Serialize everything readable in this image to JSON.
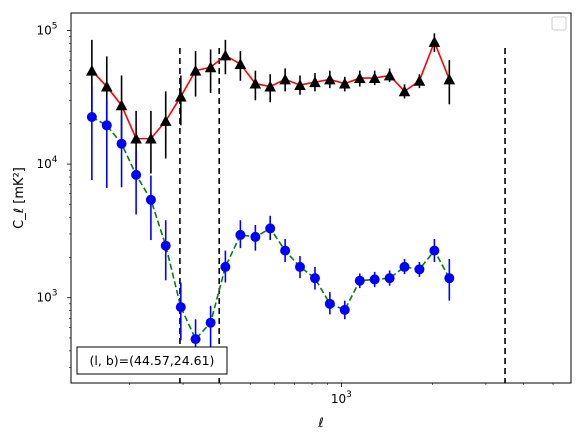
{
  "chart_data": {
    "type": "line",
    "xlabel": "ℓ",
    "ylabel": "C_ℓ [mK²]",
    "x_scale": "log",
    "y_scale": "log",
    "xlim": [
      128,
      5730
    ],
    "ylim": [
      230,
      135000
    ],
    "x_ticks": [
      {
        "value": 1000,
        "base": "10",
        "exp": "3"
      }
    ],
    "y_ticks": [
      {
        "value": 1000,
        "base": "10",
        "exp": "3"
      },
      {
        "value": 10000,
        "base": "10",
        "exp": "4"
      },
      {
        "value": 100000,
        "base": "10",
        "exp": "5"
      }
    ],
    "vlines": [
      293,
      395,
      3470
    ],
    "annotation": "(l, b)=(44.57,24.61)",
    "legend": {
      "position": "top-right",
      "entries": []
    },
    "series": [
      {
        "color": "#ff0000",
        "line_style": "solid",
        "marker": "triangle",
        "marker_color": "#000000",
        "errorbar_color": "#000000",
        "points": [
          {
            "x": 150,
            "y": 50000,
            "lo": 25000,
            "hi": 85000
          },
          {
            "x": 168,
            "y": 38000,
            "lo": 19000,
            "hi": 64000
          },
          {
            "x": 188,
            "y": 27500,
            "lo": 14500,
            "hi": 46000
          },
          {
            "x": 210,
            "y": 15500,
            "lo": 8500,
            "hi": 25000
          },
          {
            "x": 235,
            "y": 15500,
            "lo": 8500,
            "hi": 25000
          },
          {
            "x": 263,
            "y": 21000,
            "lo": 11000,
            "hi": 35000
          },
          {
            "x": 295,
            "y": 32000,
            "lo": 19500,
            "hi": 46000
          },
          {
            "x": 330,
            "y": 50000,
            "lo": 32000,
            "hi": 70000
          },
          {
            "x": 370,
            "y": 53000,
            "lo": 34000,
            "hi": 72000
          },
          {
            "x": 414,
            "y": 65000,
            "lo": 47000,
            "hi": 85000
          },
          {
            "x": 464,
            "y": 56000,
            "lo": 42000,
            "hi": 70000
          },
          {
            "x": 520,
            "y": 40000,
            "lo": 30000,
            "hi": 50000
          },
          {
            "x": 582,
            "y": 38000,
            "lo": 29000,
            "hi": 47000
          },
          {
            "x": 652,
            "y": 43000,
            "lo": 35000,
            "hi": 52000
          },
          {
            "x": 730,
            "y": 39000,
            "lo": 33000,
            "hi": 46000
          },
          {
            "x": 818,
            "y": 41000,
            "lo": 35000,
            "hi": 48000
          },
          {
            "x": 916,
            "y": 43000,
            "lo": 37000,
            "hi": 50000
          },
          {
            "x": 1026,
            "y": 40000,
            "lo": 35000,
            "hi": 45000
          },
          {
            "x": 1150,
            "y": 44000,
            "lo": 38000,
            "hi": 50000
          },
          {
            "x": 1288,
            "y": 44000,
            "lo": 39000,
            "hi": 50000
          },
          {
            "x": 1443,
            "y": 46000,
            "lo": 41000,
            "hi": 52000
          },
          {
            "x": 1616,
            "y": 35000,
            "lo": 31000,
            "hi": 39500
          },
          {
            "x": 1810,
            "y": 42000,
            "lo": 37000,
            "hi": 47000
          },
          {
            "x": 2028,
            "y": 82000,
            "lo": 69000,
            "hi": 95000
          },
          {
            "x": 2272,
            "y": 43000,
            "lo": 28000,
            "hi": 60000
          }
        ]
      },
      {
        "color": "#008000",
        "line_style": "dashed",
        "marker": "circle",
        "marker_color": "#0000ff",
        "errorbar_color": "#0000ff",
        "points": [
          {
            "x": 150,
            "y": 22500,
            "lo": 7600,
            "hi": 38000
          },
          {
            "x": 168,
            "y": 19500,
            "lo": 6600,
            "hi": 31000
          },
          {
            "x": 188,
            "y": 14200,
            "lo": 6700,
            "hi": 23000
          },
          {
            "x": 210,
            "y": 8300,
            "lo": 4200,
            "hi": 12500
          },
          {
            "x": 235,
            "y": 5400,
            "lo": 2700,
            "hi": 8200
          },
          {
            "x": 263,
            "y": 2450,
            "lo": 1350,
            "hi": 3800
          },
          {
            "x": 295,
            "y": 850,
            "lo": 480,
            "hi": 1300
          },
          {
            "x": 330,
            "y": 490,
            "lo": 330,
            "hi": 690
          },
          {
            "x": 370,
            "y": 650,
            "lo": 430,
            "hi": 870
          },
          {
            "x": 414,
            "y": 1700,
            "lo": 1300,
            "hi": 2250
          },
          {
            "x": 464,
            "y": 2950,
            "lo": 2350,
            "hi": 3800
          },
          {
            "x": 520,
            "y": 2850,
            "lo": 2250,
            "hi": 3500
          },
          {
            "x": 582,
            "y": 3300,
            "lo": 2700,
            "hi": 4100
          },
          {
            "x": 652,
            "y": 2250,
            "lo": 1850,
            "hi": 2750
          },
          {
            "x": 730,
            "y": 1700,
            "lo": 1400,
            "hi": 2050
          },
          {
            "x": 818,
            "y": 1400,
            "lo": 1150,
            "hi": 1700
          },
          {
            "x": 916,
            "y": 900,
            "lo": 750,
            "hi": 1100
          },
          {
            "x": 1026,
            "y": 810,
            "lo": 690,
            "hi": 950
          },
          {
            "x": 1150,
            "y": 1340,
            "lo": 1180,
            "hi": 1520
          },
          {
            "x": 1288,
            "y": 1370,
            "lo": 1200,
            "hi": 1560
          },
          {
            "x": 1443,
            "y": 1400,
            "lo": 1230,
            "hi": 1600
          },
          {
            "x": 1616,
            "y": 1700,
            "lo": 1500,
            "hi": 1950
          },
          {
            "x": 1810,
            "y": 1630,
            "lo": 1430,
            "hi": 1850
          },
          {
            "x": 2028,
            "y": 2250,
            "lo": 1850,
            "hi": 2750
          },
          {
            "x": 2272,
            "y": 1400,
            "lo": 950,
            "hi": 1950
          }
        ]
      }
    ]
  }
}
